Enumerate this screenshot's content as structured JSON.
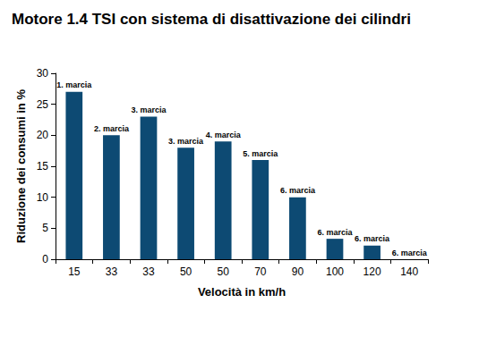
{
  "chart_data": {
    "type": "bar",
    "title": "Motore 1.4 TSI con sistema di disattivazione dei cilindri",
    "xlabel": "Velocità in km/h",
    "ylabel": "Riduzione dei consumi in %",
    "categories": [
      "15",
      "33",
      "33",
      "50",
      "50",
      "70",
      "90",
      "100",
      "120",
      "140"
    ],
    "values": [
      27,
      20,
      23,
      18,
      19,
      16,
      10,
      3.3,
      2.2,
      0
    ],
    "annotations": [
      "1. marcia",
      "2. marcia",
      "3. marcia",
      "3. marcia",
      "4. marcia",
      "5. marcia",
      "6. marcia",
      "6. marcia",
      "6. marcia",
      "6. marcia"
    ],
    "color": "#0d4a73",
    "ylim": [
      0,
      30
    ],
    "yticks": [
      0,
      5,
      10,
      15,
      20,
      25,
      30
    ],
    "grid": false
  }
}
